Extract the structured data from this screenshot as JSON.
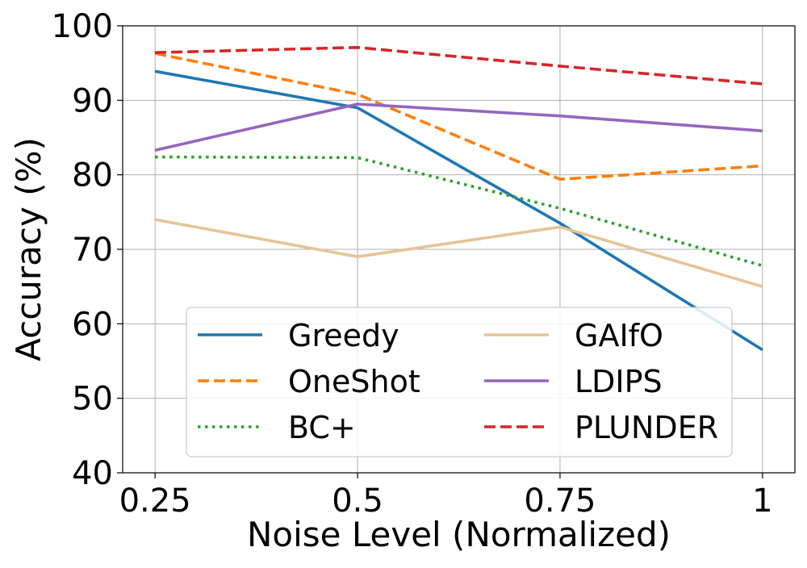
{
  "chart_data": {
    "type": "line",
    "title": "",
    "xlabel": "Noise Level (Normalized)",
    "ylabel": "Accuracy (%)",
    "x": [
      0.25,
      0.5,
      0.75,
      1
    ],
    "x_tick_labels": [
      "0.25",
      "0.5",
      "0.75",
      "1"
    ],
    "y_ticks": [
      40,
      50,
      60,
      70,
      80,
      90,
      100
    ],
    "xlim": [
      0.21,
      1.04
    ],
    "ylim": [
      40,
      100
    ],
    "grid": true,
    "legend": {
      "placement": "lower-center",
      "columns": 2
    },
    "series": [
      {
        "name": "Greedy",
        "color": "#1f77b4",
        "style": "solid",
        "values": [
          93.9,
          89.0,
          73.5,
          56.5
        ]
      },
      {
        "name": "OneShot",
        "color": "#ff7f0e",
        "style": "dashed",
        "values": [
          96.3,
          90.8,
          79.4,
          81.2
        ]
      },
      {
        "name": "BC+",
        "color": "#2ca02c",
        "style": "dotted",
        "values": [
          82.4,
          82.3,
          75.5,
          67.8
        ]
      },
      {
        "name": "GAIfO",
        "color": "#e6c496",
        "style": "solid",
        "values": [
          74.0,
          69.0,
          73.0,
          65.0
        ]
      },
      {
        "name": "LDIPS",
        "color": "#9467bd",
        "style": "solid",
        "values": [
          83.3,
          89.5,
          87.9,
          85.9
        ]
      },
      {
        "name": "PLUNDER",
        "color": "#d62728",
        "style": "dashed",
        "values": [
          96.4,
          97.1,
          94.6,
          92.2
        ]
      }
    ]
  }
}
